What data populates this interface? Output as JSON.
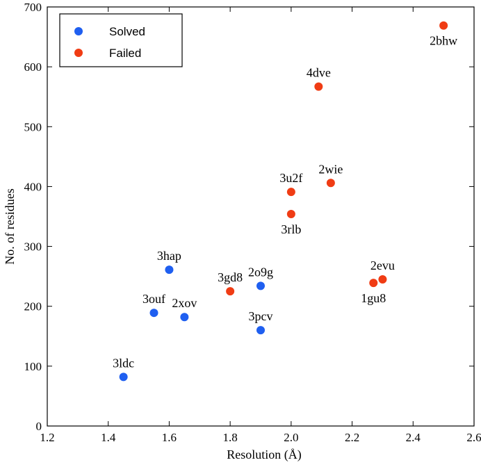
{
  "chart_data": {
    "type": "scatter",
    "title": "",
    "xlabel": "Resolution (Å)",
    "ylabel": "No. of residues",
    "xlim": [
      1.2,
      2.6
    ],
    "ylim": [
      0,
      700
    ],
    "xticks": [
      1.2,
      1.4,
      1.6,
      1.8,
      2.0,
      2.2,
      2.4,
      2.6
    ],
    "xtick_labels": [
      "1.2",
      "1.4",
      "1.6",
      "1.8",
      "2.0",
      "2.2",
      "2.4",
      "2.6"
    ],
    "yticks": [
      0,
      100,
      200,
      300,
      400,
      500,
      600,
      700
    ],
    "ytick_labels": [
      "0",
      "100",
      "200",
      "300",
      "400",
      "500",
      "600",
      "700"
    ],
    "grid": false,
    "legend_position": "top-left",
    "series": [
      {
        "name": "Solved",
        "color": "#1f5ff0",
        "points": [
          {
            "label": "3ldc",
            "x": 1.45,
            "y": 82,
            "label_pos": "above"
          },
          {
            "label": "3ouf",
            "x": 1.55,
            "y": 189,
            "label_pos": "above"
          },
          {
            "label": "3hap",
            "x": 1.6,
            "y": 261,
            "label_pos": "above"
          },
          {
            "label": "2xov",
            "x": 1.65,
            "y": 182,
            "label_pos": "above"
          },
          {
            "label": "2o9g",
            "x": 1.9,
            "y": 234,
            "label_pos": "above"
          },
          {
            "label": "3pcv",
            "x": 1.9,
            "y": 160,
            "label_pos": "above"
          }
        ]
      },
      {
        "name": "Failed",
        "color": "#f03c14",
        "points": [
          {
            "label": "3gd8",
            "x": 1.8,
            "y": 225,
            "label_pos": "above"
          },
          {
            "label": "3u2f",
            "x": 2.0,
            "y": 391,
            "label_pos": "above"
          },
          {
            "label": "3rlb",
            "x": 2.0,
            "y": 354,
            "label_pos": "below"
          },
          {
            "label": "4dve",
            "x": 2.09,
            "y": 567,
            "label_pos": "above"
          },
          {
            "label": "2wie",
            "x": 2.13,
            "y": 406,
            "label_pos": "above"
          },
          {
            "label": "1gu8",
            "x": 2.27,
            "y": 239,
            "label_pos": "below"
          },
          {
            "label": "2evu",
            "x": 2.3,
            "y": 245,
            "label_pos": "above"
          },
          {
            "label": "2bhw",
            "x": 2.5,
            "y": 669,
            "label_pos": "below"
          }
        ]
      }
    ]
  }
}
